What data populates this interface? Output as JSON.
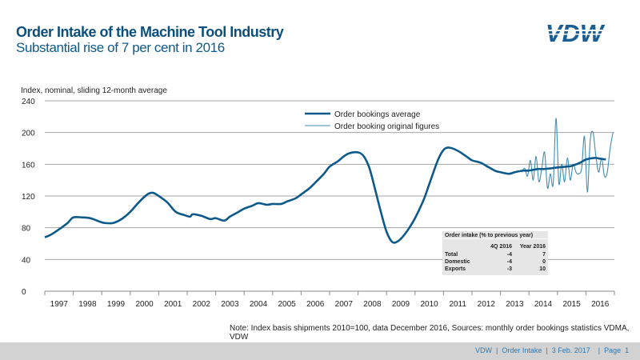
{
  "header": {
    "title": "Order Intake of the Machine Tool Industry",
    "subtitle": "Substantial rise of 7 per cent in 2016",
    "logo_text": "VDW"
  },
  "colors": {
    "primary": "#0d5a8a",
    "secondary": "#3f8db3",
    "grid": "#a6a6a6",
    "footer": "#d2d2d2"
  },
  "chart_data": {
    "type": "line",
    "ylabel": "Index, nominal, sliding 12-month average",
    "ylim": [
      0,
      240
    ],
    "yticks": [
      0,
      40,
      80,
      120,
      160,
      200,
      240
    ],
    "xlim": [
      1997,
      2017
    ],
    "xtick_labels": [
      "1997",
      "1998",
      "1999",
      "2000",
      "2001",
      "2002",
      "2003",
      "2004",
      "2005",
      "2006",
      "2007",
      "2008",
      "2009",
      "2010",
      "2011",
      "2012",
      "2013",
      "2014",
      "2015",
      "2016"
    ],
    "grid": true,
    "legend_placement": "top-center",
    "series": [
      {
        "name": "Order bookings average",
        "x": [
          1997.0,
          1997.2,
          1997.5,
          1997.8,
          1998.0,
          1998.3,
          1998.6,
          1998.9,
          1999.1,
          1999.4,
          1999.7,
          2000.0,
          2000.3,
          2000.6,
          2000.8,
          2001.0,
          2001.3,
          2001.6,
          2001.9,
          2002.1,
          2002.2,
          2002.5,
          2002.8,
          2003.0,
          2003.3,
          2003.5,
          2003.8,
          2004.0,
          2004.3,
          2004.5,
          2004.8,
          2005.0,
          2005.3,
          2005.5,
          2005.8,
          2006.0,
          2006.3,
          2006.5,
          2006.8,
          2007.0,
          2007.3,
          2007.5,
          2007.7,
          2008.0,
          2008.2,
          2008.4,
          2008.6,
          2008.8,
          2009.0,
          2009.2,
          2009.4,
          2009.6,
          2009.8,
          2010.0,
          2010.3,
          2010.5,
          2010.8,
          2011.0,
          2011.2,
          2011.5,
          2011.8,
          2012.0,
          2012.3,
          2012.5,
          2012.8,
          2013.0,
          2013.3,
          2013.5,
          2013.8,
          2014.0,
          2014.3,
          2014.5,
          2014.8,
          2015.0,
          2015.3,
          2015.5,
          2015.8,
          2016.0,
          2016.3,
          2016.5,
          2016.7
        ],
        "values": [
          68,
          71,
          78,
          86,
          93,
          93,
          92,
          88,
          86,
          86,
          91,
          100,
          112,
          122,
          124,
          120,
          112,
          100,
          96,
          94,
          97,
          95,
          91,
          92,
          89,
          94,
          100,
          104,
          108,
          111,
          109,
          110,
          110,
          113,
          117,
          122,
          130,
          137,
          148,
          157,
          164,
          170,
          174,
          175,
          170,
          155,
          128,
          100,
          75,
          62,
          63,
          70,
          80,
          92,
          115,
          135,
          165,
          178,
          181,
          177,
          170,
          165,
          162,
          158,
          152,
          150,
          148,
          150,
          152,
          152,
          154,
          154,
          155,
          156,
          157,
          158,
          162,
          166,
          168,
          167,
          166
        ]
      },
      {
        "name": "Order booking original figures",
        "x": [
          2013.75,
          2013.85,
          2013.95,
          2014.05,
          2014.15,
          2014.25,
          2014.35,
          2014.45,
          2014.55,
          2014.65,
          2014.75,
          2014.85,
          2014.95,
          2015.05,
          2015.15,
          2015.25,
          2015.35,
          2015.45,
          2015.55,
          2015.65,
          2015.75,
          2015.85,
          2015.95,
          2016.05,
          2016.15,
          2016.25,
          2016.35,
          2016.45,
          2016.55,
          2016.65,
          2016.75,
          2016.85,
          2016.95
        ],
        "values": [
          150,
          155,
          145,
          165,
          140,
          170,
          138,
          155,
          175,
          130,
          148,
          135,
          218,
          136,
          160,
          138,
          168,
          140,
          160,
          150,
          148,
          155,
          195,
          125,
          190,
          200,
          170,
          150,
          168,
          145,
          150,
          180,
          200
        ]
      }
    ]
  },
  "summary_table": {
    "title": "Order intake (% to previous year)",
    "columns": [
      "",
      "4Q 2016",
      "Year 2016"
    ],
    "rows": [
      [
        "Total",
        "-4",
        "7"
      ],
      [
        "Domestic",
        "-4",
        "0"
      ],
      [
        "Exports",
        "-3",
        "10"
      ]
    ]
  },
  "note": "Note: Index basis shipments 2010=100, data December 2016, Sources: monthly order bookings statistics VDMA, VDW",
  "footer": {
    "text": "VDW  |  Order Intake  |  3 Feb. 2017    |  Page  1"
  }
}
